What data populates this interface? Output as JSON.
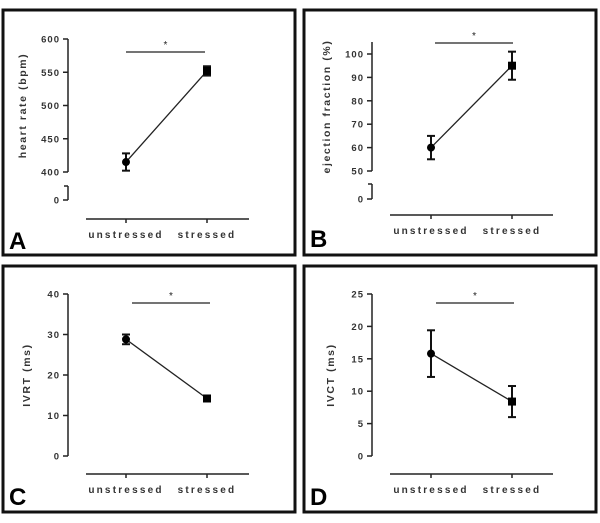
{
  "chart_data": [
    {
      "type": "line",
      "panel_label": "A",
      "ylabel": "heart rate (bpm)",
      "categories": [
        "unstressed",
        "stressed"
      ],
      "values": [
        415,
        552
      ],
      "errors": [
        13,
        7
      ],
      "yticks": [
        0,
        400,
        450,
        500,
        550,
        600
      ],
      "ylim": [
        400,
        600
      ],
      "y_axis_break": true,
      "significance": "*",
      "markers": [
        "circle",
        "square"
      ]
    },
    {
      "type": "line",
      "panel_label": "B",
      "ylabel": "ejection fraction  (%)",
      "categories": [
        "unstressed",
        "stressed"
      ],
      "values": [
        60,
        95
      ],
      "errors": [
        5,
        6
      ],
      "yticks": [
        0,
        50,
        60,
        70,
        80,
        90,
        100
      ],
      "ylim": [
        50,
        105
      ],
      "y_axis_break": true,
      "significance": "*",
      "markers": [
        "circle",
        "square"
      ]
    },
    {
      "type": "line",
      "panel_label": "C",
      "ylabel": "IVRT (ms)",
      "categories": [
        "unstressed",
        "stressed"
      ],
      "values": [
        28.8,
        14.2
      ],
      "errors": [
        1.2,
        0.6
      ],
      "yticks": [
        0,
        10,
        20,
        30,
        40
      ],
      "ylim": [
        0,
        40
      ],
      "y_axis_break": false,
      "significance": "*",
      "markers": [
        "circle",
        "square"
      ]
    },
    {
      "type": "line",
      "panel_label": "D",
      "ylabel": "IVCT (ms)",
      "categories": [
        "unstressed",
        "stressed"
      ],
      "values": [
        15.8,
        8.4
      ],
      "errors": [
        3.6,
        2.4
      ],
      "yticks": [
        0,
        5,
        10,
        15,
        20,
        25
      ],
      "ylim": [
        0,
        25
      ],
      "y_axis_break": false,
      "significance": "*",
      "markers": [
        "circle",
        "square"
      ]
    }
  ]
}
